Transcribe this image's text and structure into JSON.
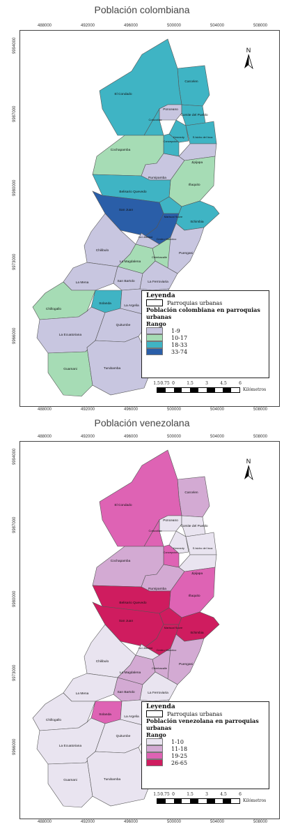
{
  "maps": [
    {
      "title": "Población colombiana",
      "legend": {
        "heading": "Leyenda",
        "boundary_label": "Parroquias urbanas",
        "subtitle": "Población colombiana en parroquias urbanas",
        "range_label": "Rango",
        "classes": [
          {
            "label": "1-9",
            "color": "#c8c6e0"
          },
          {
            "label": "10-17",
            "color": "#a6dcb5"
          },
          {
            "label": "18-33",
            "color": "#3fb4c4"
          },
          {
            "label": "33-74",
            "color": "#2a5ea8"
          }
        ]
      }
    },
    {
      "title": "Población venezolana",
      "legend": {
        "heading": "Leyenda",
        "boundary_label": "Parroquias urbanas",
        "subtitle": "Población venezolana en parroquias urbanas",
        "range_label": "Rango",
        "classes": [
          {
            "label": "1-10",
            "color": "#e9e4f0"
          },
          {
            "label": "11-18",
            "color": "#d3aad3"
          },
          {
            "label": "19-25",
            "color": "#de63b4"
          },
          {
            "label": "26-65",
            "color": "#cf1c5f"
          }
        ]
      }
    }
  ],
  "x_ticks": [
    "488000",
    "492000",
    "496000",
    "500000",
    "504000",
    "508000"
  ],
  "y_ticks": [
    "9994000",
    "9987000",
    "9980000",
    "9973000",
    "9966000"
  ],
  "north_label": "N",
  "scale": {
    "labels": [
      "1.5",
      "0.75",
      "0",
      "1.5",
      "3",
      "4.5",
      "6"
    ],
    "unit": "Kilómetros"
  },
  "parishes": [
    {
      "name": "Carcelen",
      "c1": 2,
      "c2": 1
    },
    {
      "name": "El Condado",
      "c1": 2,
      "c2": 2
    },
    {
      "name": "Ponceano",
      "c1": 0,
      "c2": 0
    },
    {
      "name": "Comite del Pueblo",
      "c1": 2,
      "c2": 0
    },
    {
      "name": "Cotocollao",
      "c1": 2,
      "c2": 2
    },
    {
      "name": "Kennedy",
      "c1": 2,
      "c2": 0
    },
    {
      "name": "S.Isidro del Inca",
      "c1": 2,
      "c2": 0
    },
    {
      "name": "Concepcion",
      "c1": 2,
      "c2": 2
    },
    {
      "name": "Cochapamba",
      "c1": 1,
      "c2": 1
    },
    {
      "name": "Jipijapa",
      "c1": 0,
      "c2": 0
    },
    {
      "name": "Rumipamba",
      "c1": 0,
      "c2": 1
    },
    {
      "name": "Iñaquito",
      "c1": 1,
      "c2": 2
    },
    {
      "name": "Belisario Quevedo",
      "c1": 2,
      "c2": 3
    },
    {
      "name": "Mariscal Sucre",
      "c1": 2,
      "c2": 3
    },
    {
      "name": "Itchimbia",
      "c1": 2,
      "c2": 3
    },
    {
      "name": "San Juan",
      "c1": 3,
      "c2": 3
    },
    {
      "name": "Centro Historico",
      "c1": 3,
      "c2": 3
    },
    {
      "name": "La Libertad",
      "c1": 0,
      "c2": 0
    },
    {
      "name": "Puengasi",
      "c1": 0,
      "c2": 1
    },
    {
      "name": "Chilibulo",
      "c1": 0,
      "c2": 0
    },
    {
      "name": "Chimbacalle",
      "c1": 1,
      "c2": 1
    },
    {
      "name": "La Magdalena",
      "c1": 1,
      "c2": 1
    },
    {
      "name": "La Mena",
      "c1": 0,
      "c2": 0
    },
    {
      "name": "San Bartolo",
      "c1": 0,
      "c2": 1
    },
    {
      "name": "La Ferroviaria",
      "c1": 0,
      "c2": 0
    },
    {
      "name": "Chillogallo",
      "c1": 1,
      "c2": 0
    },
    {
      "name": "Solanda",
      "c1": 2,
      "c2": 2
    },
    {
      "name": "La Argelia",
      "c1": 0,
      "c2": 0
    },
    {
      "name": "La Ecuatoriana",
      "c1": 0,
      "c2": 0
    },
    {
      "name": "Quitumbe",
      "c1": 0,
      "c2": 0
    },
    {
      "name": "Guamani",
      "c1": 1,
      "c2": 0
    },
    {
      "name": "Turubamba",
      "c1": 0,
      "c2": 0
    }
  ]
}
